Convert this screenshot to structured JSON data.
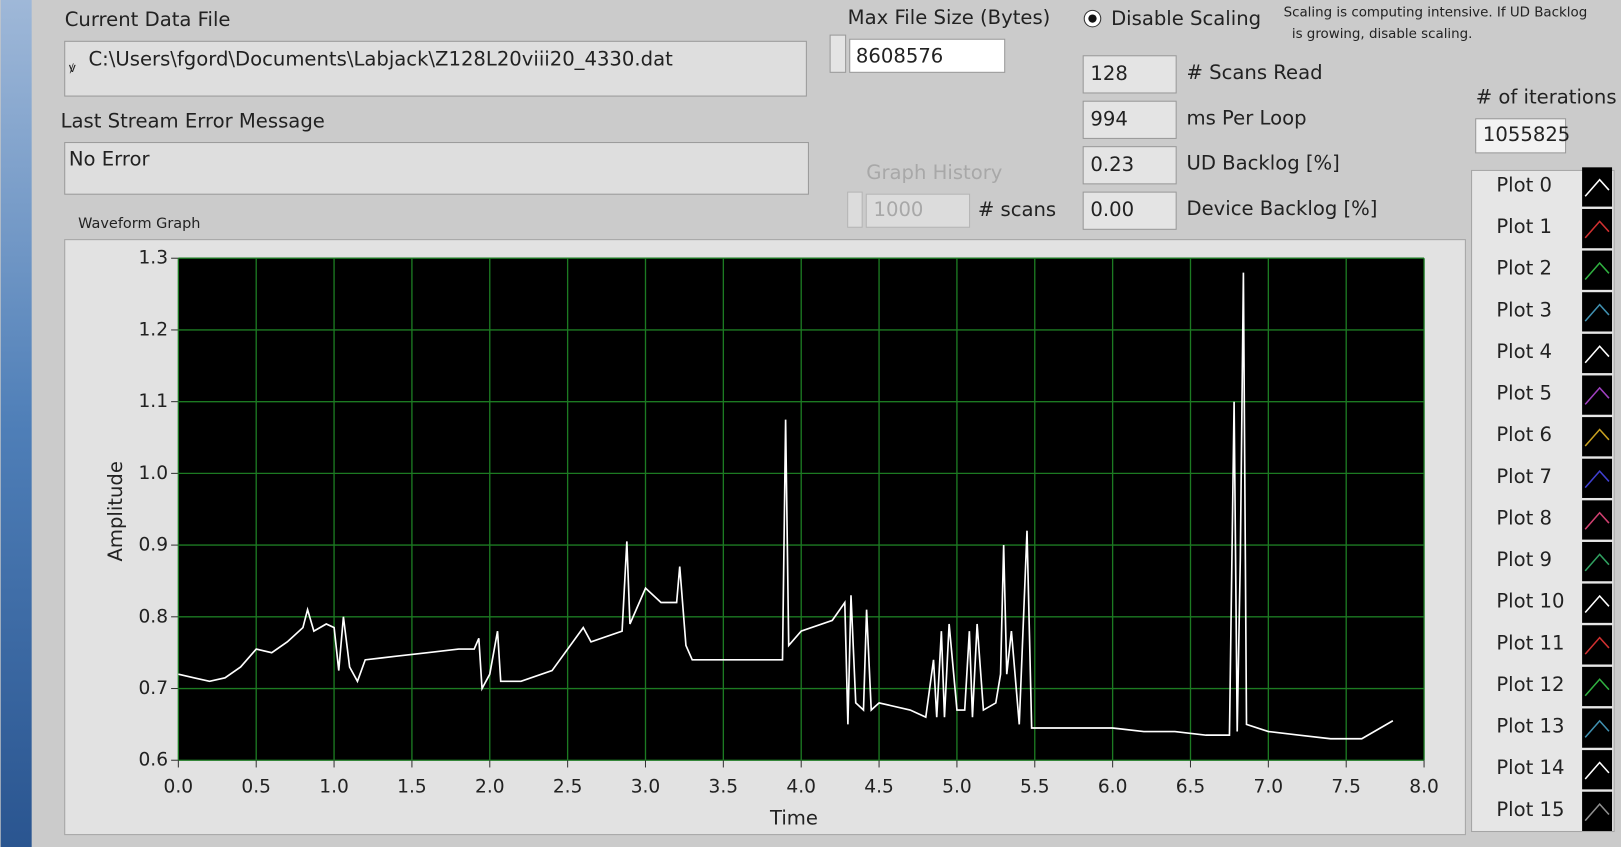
{
  "panel": {
    "current_data_file": {
      "label": "Current Data File",
      "value": "C:\\Users\\fgord\\Documents\\Labjack\\Z128L20viii20_4330.dat"
    },
    "last_stream_error": {
      "label": "Last Stream Error Message",
      "value": "No Error"
    },
    "max_file_size": {
      "label": "Max File Size (Bytes)",
      "value": "8608576"
    },
    "disable_scaling": "Disable Scaling",
    "scaling_note": [
      "Scaling is computing intensive.  If UD Backlog",
      "is growing, disable scaling."
    ],
    "indicators": [
      {
        "value": "128",
        "label": "# Scans Read"
      },
      {
        "value": "994",
        "label": "ms Per Loop"
      },
      {
        "value": "0.23",
        "label": "UD Backlog [%]"
      },
      {
        "value": "0.00",
        "label": "Device Backlog [%]"
      }
    ],
    "iterations": {
      "label": "# of iterations",
      "value": "1055825"
    },
    "graph_history": {
      "label": "Graph History",
      "value": "1000",
      "unit": "# scans"
    },
    "graph_label": "Waveform Graph"
  },
  "chart_data": {
    "type": "line",
    "xlabel": "Time",
    "ylabel": "Amplitude",
    "x": [
      0.0,
      0.1,
      0.2,
      0.3,
      0.4,
      0.5,
      0.6,
      0.7,
      0.8,
      0.83,
      0.87,
      0.95,
      1.0,
      1.03,
      1.06,
      1.1,
      1.15,
      1.2,
      1.4,
      1.6,
      1.8,
      1.9,
      1.93,
      1.95,
      2.0,
      2.05,
      2.07,
      2.2,
      2.4,
      2.6,
      2.65,
      2.85,
      2.88,
      2.9,
      3.0,
      3.1,
      3.2,
      3.22,
      3.26,
      3.3,
      3.5,
      3.7,
      3.88,
      3.9,
      3.92,
      4.0,
      4.2,
      4.28,
      4.3,
      4.32,
      4.35,
      4.4,
      4.42,
      4.45,
      4.5,
      4.7,
      4.8,
      4.85,
      4.87,
      4.9,
      4.92,
      4.95,
      5.0,
      5.05,
      5.08,
      5.1,
      5.13,
      5.17,
      5.25,
      5.28,
      5.3,
      5.32,
      5.35,
      5.4,
      5.45,
      5.48,
      5.6,
      5.8,
      6.0,
      6.2,
      6.4,
      6.6,
      6.75,
      6.78,
      6.8,
      6.82,
      6.84,
      6.86,
      7.0,
      7.2,
      7.4,
      7.6,
      7.8
    ],
    "series": [
      {
        "name": "Plot 0",
        "color": "#ffffff",
        "values": [
          0.72,
          0.715,
          0.71,
          0.715,
          0.73,
          0.755,
          0.75,
          0.765,
          0.785,
          0.81,
          0.78,
          0.79,
          0.785,
          0.725,
          0.8,
          0.73,
          0.71,
          0.74,
          0.745,
          0.75,
          0.755,
          0.755,
          0.77,
          0.7,
          0.72,
          0.78,
          0.71,
          0.71,
          0.725,
          0.785,
          0.765,
          0.78,
          0.905,
          0.79,
          0.84,
          0.82,
          0.82,
          0.87,
          0.76,
          0.74,
          0.74,
          0.74,
          0.74,
          1.075,
          0.76,
          0.78,
          0.795,
          0.82,
          0.65,
          0.83,
          0.68,
          0.67,
          0.81,
          0.67,
          0.68,
          0.67,
          0.66,
          0.74,
          0.66,
          0.78,
          0.66,
          0.79,
          0.67,
          0.67,
          0.78,
          0.66,
          0.79,
          0.67,
          0.68,
          0.72,
          0.9,
          0.72,
          0.78,
          0.65,
          0.92,
          0.645,
          0.645,
          0.645,
          0.645,
          0.64,
          0.64,
          0.635,
          0.635,
          1.1,
          0.64,
          0.88,
          1.28,
          0.65,
          0.64,
          0.635,
          0.63,
          0.63,
          0.655
        ]
      }
    ],
    "legend": [
      {
        "name": "Plot 1",
        "color": "#d03030"
      },
      {
        "name": "Plot 2",
        "color": "#30b040"
      },
      {
        "name": "Plot 3",
        "color": "#4090b0"
      },
      {
        "name": "Plot 4",
        "color": "#ffffff"
      },
      {
        "name": "Plot 5",
        "color": "#a040c0"
      },
      {
        "name": "Plot 6",
        "color": "#c8a020"
      },
      {
        "name": "Plot 7",
        "color": "#4040d0"
      },
      {
        "name": "Plot 8",
        "color": "#d04070"
      },
      {
        "name": "Plot 9",
        "color": "#30a060"
      },
      {
        "name": "Plot 10",
        "color": "#ffffff"
      },
      {
        "name": "Plot 11",
        "color": "#d03030"
      },
      {
        "name": "Plot 12",
        "color": "#30b040"
      },
      {
        "name": "Plot 13",
        "color": "#4090b0"
      },
      {
        "name": "Plot 14",
        "color": "#ffffff"
      },
      {
        "name": "Plot 15",
        "color": "#909090"
      }
    ],
    "xlim": [
      0,
      8
    ],
    "ylim": [
      0.6,
      1.3
    ],
    "xticks": [
      {
        "value": 0,
        "label": "0.0"
      },
      0.5,
      {
        "value": 1,
        "label": "1.0"
      },
      1.5,
      {
        "value": 2,
        "label": "2.0"
      },
      2.5,
      {
        "value": 3,
        "label": "3.0"
      },
      3.5,
      {
        "value": 4,
        "label": "4.0"
      },
      4.5,
      {
        "value": 5,
        "label": "5.0"
      },
      5.5,
      {
        "value": 6,
        "label": "6.0"
      },
      6.5,
      {
        "value": 7,
        "label": "7.0"
      },
      7.5,
      {
        "value": 8,
        "label": "8.0"
      }
    ],
    "yticks": [
      0.6,
      0.7,
      0.8,
      0.9,
      {
        "value": 1,
        "label": "1.0"
      },
      1.1,
      1.2,
      1.3
    ],
    "grid": true,
    "plot_background": "#000000",
    "grid_color": "#1c7a22"
  }
}
